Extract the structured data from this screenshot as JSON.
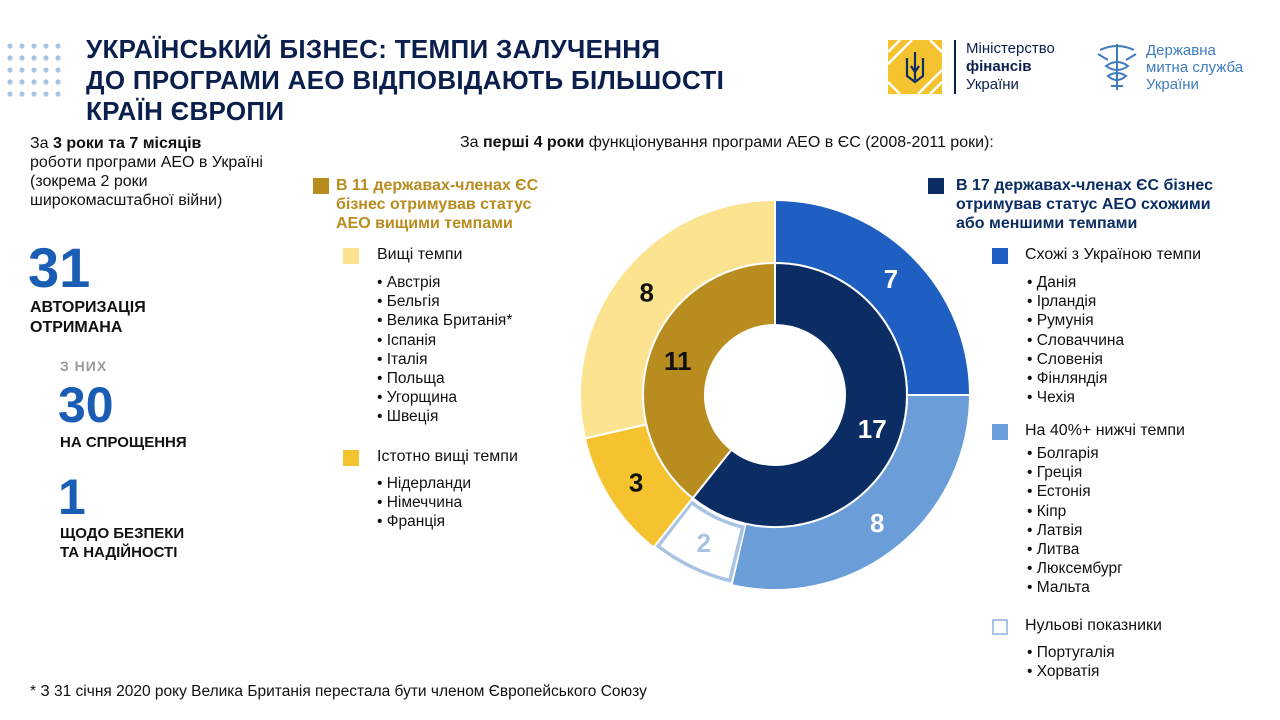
{
  "header": {
    "title_lines": [
      "УКРАЇНСЬКИЙ БІЗНЕС: ТЕМПИ ЗАЛУЧЕННЯ",
      "ДО ПРОГРАМИ АЕО ВІДПОВІДАЮТЬ БІЛЬШОСТІ",
      "КРАЇН ЄВРОПИ"
    ],
    "ministry": {
      "line1": "Міністерство",
      "line2": "фінансів",
      "line3": "України"
    },
    "customs": {
      "line1": "Державна",
      "line2": "митна служба",
      "line3": "України"
    }
  },
  "colors": {
    "navy": "#0b2d63",
    "blue": "#1f5fc2",
    "light_blue": "#6b9ed8",
    "zero": "#a9c4e3",
    "gold_dark": "#b88c1e",
    "gold": "#f5c330",
    "gold_light": "#fbe38f"
  },
  "left_panel": {
    "intro_pre": "За ",
    "intro_bold": "3 роки та 7 місяців",
    "intro_rest": "роботи програми АЕО в Україні (зокрема 2 роки широкомасштабної війни)",
    "total_value": "31",
    "total_label_1": "АВТОРИЗАЦІЯ",
    "total_label_2": "ОТРИМАНА",
    "of_them": "З НИХ",
    "simpl_value": "30",
    "simpl_label": "НА СПРОЩЕННЯ",
    "safety_value": "1",
    "safety_label_1": "ЩОДО БЕЗПЕКИ",
    "safety_label_2": "ТА НАДІЙНОСТІ"
  },
  "caption": {
    "pre": "За ",
    "bold": "перші 4 роки",
    "rest": " функціонування програми АЕО в ЄС (2008-2011 роки):"
  },
  "left_group": {
    "heading_lines": [
      "В 11 державах-членах ЄС",
      "бізнес отримував статус",
      "АЕО вищими темпами"
    ],
    "cat1": "Вищі темпи",
    "cat1_countries": [
      "• Австрія",
      "• Бельгія",
      "• Велика Британія*",
      "• Іспанія",
      "• Італія",
      "• Польща",
      "• Угорщина",
      "• Швеція"
    ],
    "cat2": "Істотно вищі темпи",
    "cat2_countries": [
      "• Нідерланди",
      "• Німеччина",
      "• Франція"
    ]
  },
  "right_group": {
    "heading_lines": [
      "В 17 державах-членах ЄС бізнес",
      "отримував статус АЕО схожими",
      "або меншими темпами"
    ],
    "cat1": "Схожі з Україною темпи",
    "cat1_countries": [
      "• Данія",
      "• Ірландія",
      "• Румунія",
      "• Словаччина",
      "• Словенія",
      "• Фінляндія",
      "• Чехія"
    ],
    "cat2": "На 40%+ нижчі темпи",
    "cat2_countries": [
      "• Болгарія",
      "• Греція",
      "• Естонія",
      "• Кіпр",
      "• Латвія",
      "• Литва",
      "• Люксембург",
      "• Мальта"
    ],
    "cat3": "Нульові показники",
    "cat3_countries": [
      "• Португалія",
      "• Хорватія"
    ]
  },
  "chart_data": {
    "type": "pie",
    "subtype": "nested-donut",
    "title": "За перші 4 роки функціонування програми АЕО в ЄС (2008-2011 роки)",
    "outer_ring": [
      {
        "label": "Схожі з Україною темпи",
        "value": 7,
        "color": "#1f5fc2"
      },
      {
        "label": "На 40%+ нижчі темпи",
        "value": 8,
        "color": "#6b9ed8"
      },
      {
        "label": "Нульові показники",
        "value": 2,
        "color": "#ffffff"
      },
      {
        "label": "Істотно вищі темпи",
        "value": 3,
        "color": "#f5c330"
      },
      {
        "label": "Вищі темпи",
        "value": 8,
        "color": "#fbe38f"
      }
    ],
    "inner_ring": [
      {
        "label": "Схожими або меншими темпами",
        "value": 17,
        "color": "#0b2d63"
      },
      {
        "label": "Вищими темпами",
        "value": 11,
        "color": "#b88c1e"
      }
    ],
    "legend": "left-and-right"
  },
  "footnote": "*  З 31 січня 2020 року Велика Британія перестала бути членом Європейського Союзу"
}
